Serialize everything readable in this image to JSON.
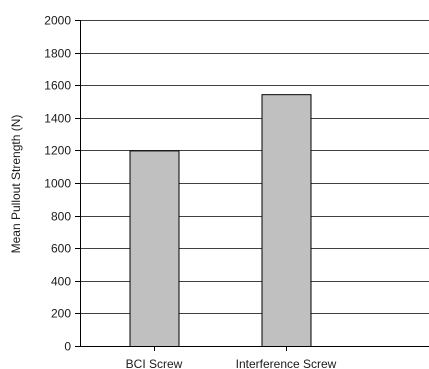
{
  "chart_data": {
    "type": "bar",
    "title": "",
    "xlabel": "",
    "ylabel": "Mean Pullout Strength (N)",
    "categories": [
      "BCI Screw",
      "Interference Screw"
    ],
    "values": [
      1200,
      1545
    ],
    "ylim": [
      0,
      2000
    ],
    "yticks": [
      0,
      200,
      400,
      600,
      800,
      1000,
      1200,
      1400,
      1600,
      1800,
      2000
    ],
    "grid": true,
    "legend": "none",
    "bar_color": "#c0c0c0",
    "bar_edge_color": "#000000"
  }
}
